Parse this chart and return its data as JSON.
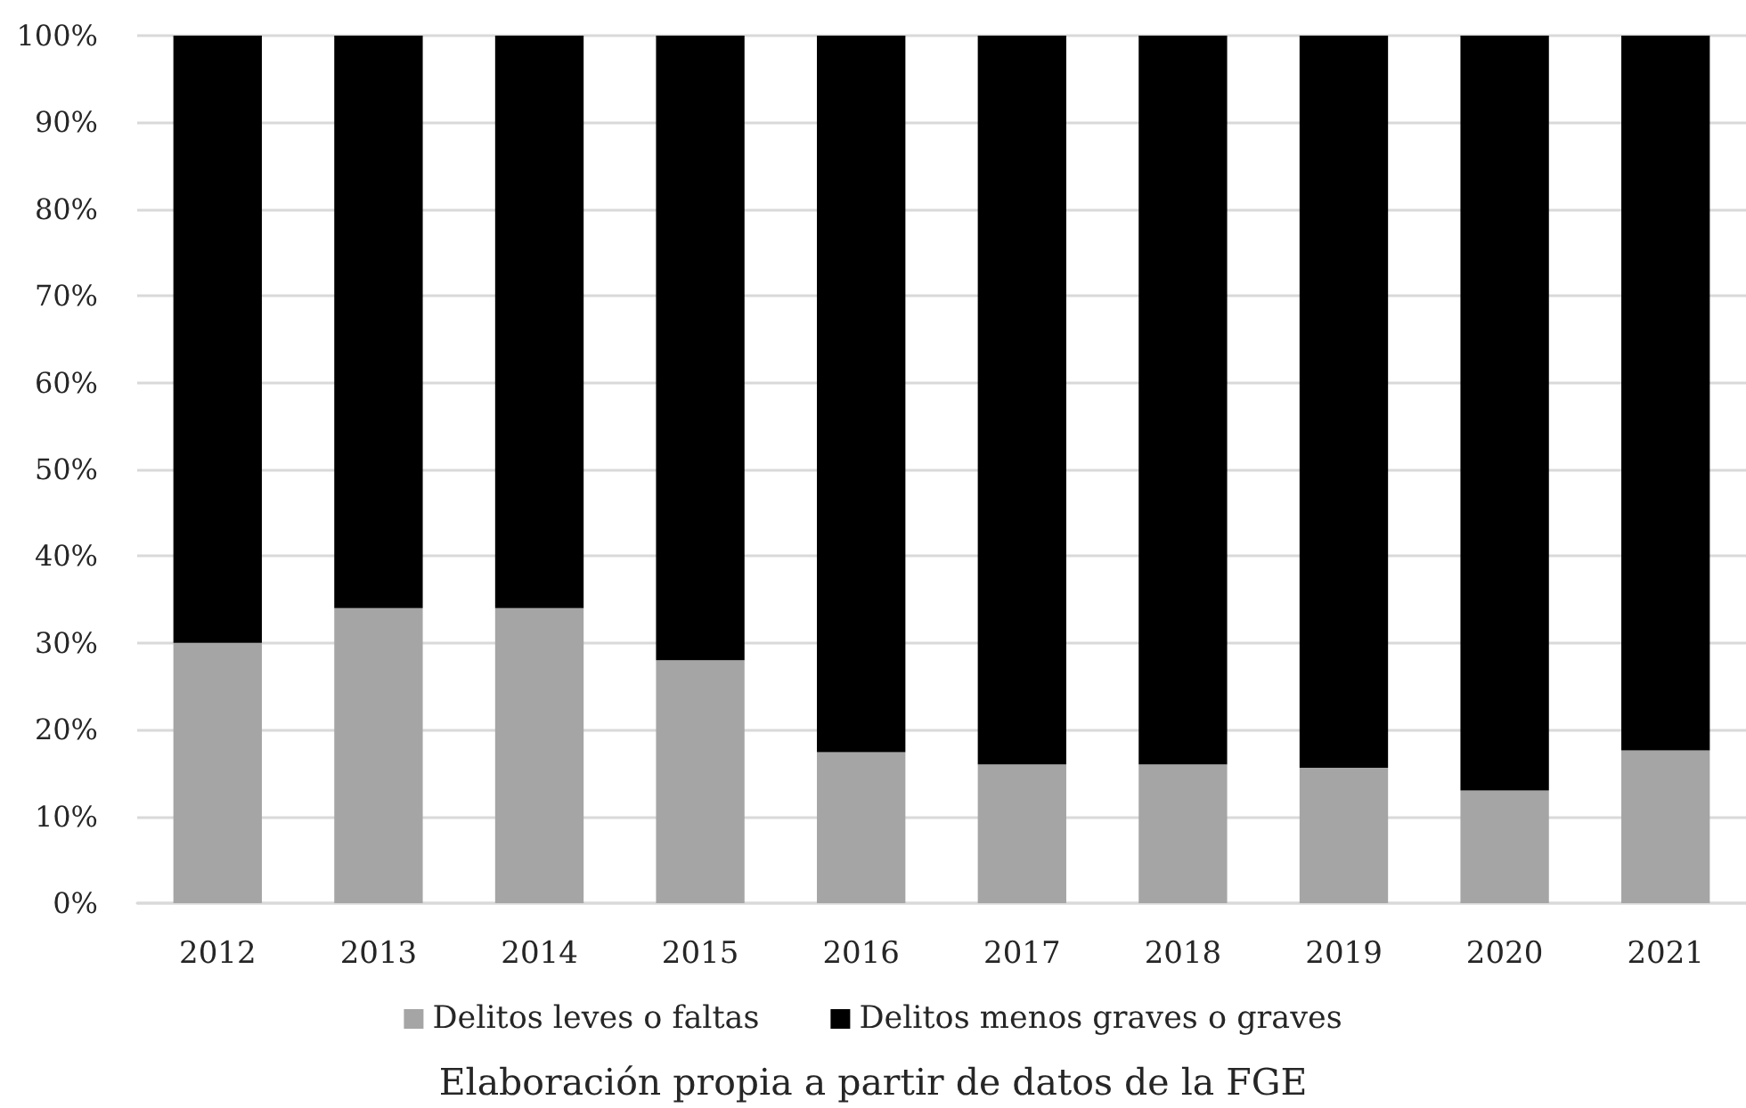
{
  "chart_data": {
    "type": "bar",
    "stacked": true,
    "categories": [
      "2012",
      "2013",
      "2014",
      "2015",
      "2016",
      "2017",
      "2018",
      "2019",
      "2020",
      "2021"
    ],
    "series": [
      {
        "name": "Delitos leves o faltas",
        "color": "#a5a5a5",
        "values": [
          30,
          34,
          34,
          28,
          17.4,
          16,
          16,
          15.6,
          13,
          17.6
        ]
      },
      {
        "name": "Delitos menos graves o graves",
        "color": "#000000",
        "values": [
          70,
          66,
          66,
          72,
          82.6,
          84,
          84,
          84.4,
          87,
          82.4
        ]
      }
    ],
    "ylim": [
      0,
      100
    ],
    "yticks": [
      {
        "value": 0,
        "label": "0%"
      },
      {
        "value": 10,
        "label": "10%"
      },
      {
        "value": 20,
        "label": "20%"
      },
      {
        "value": 30,
        "label": "30%"
      },
      {
        "value": 40,
        "label": "40%"
      },
      {
        "value": 50,
        "label": "50%"
      },
      {
        "value": 60,
        "label": "60%"
      },
      {
        "value": 70,
        "label": "70%"
      },
      {
        "value": 80,
        "label": "80%"
      },
      {
        "value": 90,
        "label": "90%"
      },
      {
        "value": 100,
        "label": "100%"
      }
    ],
    "grid": "y",
    "legend": "bottom",
    "annotations": [
      "Elaboración propia a partir de datos de la FGE"
    ]
  }
}
